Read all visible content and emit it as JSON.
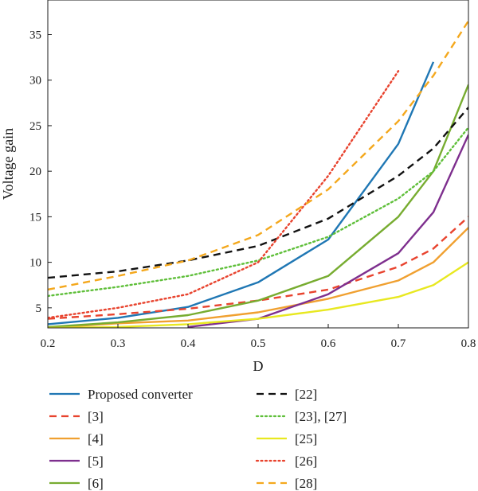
{
  "chart_data": {
    "type": "line",
    "title": "",
    "xlabel": "D",
    "ylabel": "Voltage gain",
    "xlim": [
      0.2,
      0.8
    ],
    "ylim": [
      2.8,
      38.8
    ],
    "x_ticks": [
      "0.2",
      "0.3",
      "0.4",
      "0.5",
      "0.6",
      "0.7",
      "0.8"
    ],
    "y_ticks": [
      "5",
      "10",
      "15",
      "20",
      "25",
      "30",
      "35"
    ],
    "x_tick_values": [
      0.2,
      0.3,
      0.4,
      0.5,
      0.6,
      0.7,
      0.8
    ],
    "y_tick_values": [
      5,
      10,
      15,
      20,
      25,
      30,
      35
    ],
    "grid": false,
    "legend_position": "bottom",
    "x": [
      0.2,
      0.3,
      0.4,
      0.5,
      0.6,
      0.7,
      0.75,
      0.8
    ],
    "series": [
      {
        "name": "Proposed converter",
        "color": "#1f77b4",
        "dash": "solid",
        "values": [
          3.2,
          3.9,
          5.1,
          7.8,
          12.5,
          23.0,
          32.0,
          null
        ]
      },
      {
        "name": "[3]",
        "color": "#e8432e",
        "dash": "dashed",
        "values": [
          3.8,
          4.3,
          4.9,
          5.8,
          7.0,
          9.5,
          11.5,
          15.0
        ]
      },
      {
        "name": "[4]",
        "color": "#f0a030",
        "dash": "solid",
        "values": [
          2.8,
          3.3,
          3.6,
          4.5,
          6.0,
          8.0,
          10.0,
          13.8
        ]
      },
      {
        "name": "[5]",
        "color": "#7e2f8e",
        "dash": "solid",
        "values": [
          null,
          null,
          2.9,
          3.8,
          6.5,
          11.0,
          15.5,
          24.0
        ]
      },
      {
        "name": "[6]",
        "color": "#77ac30",
        "dash": "solid",
        "values": [
          2.9,
          3.4,
          4.2,
          5.8,
          8.5,
          15.0,
          20.0,
          29.5
        ]
      },
      {
        "name": "[22]",
        "color": "#111111",
        "dash": "dashed",
        "values": [
          8.3,
          9.0,
          10.2,
          11.8,
          14.8,
          19.5,
          22.5,
          27.0
        ]
      },
      {
        "name": "[23], [27]",
        "color": "#5fbf3a",
        "dash": "dotted",
        "values": [
          6.3,
          7.3,
          8.5,
          10.2,
          12.8,
          17.0,
          20.0,
          24.8
        ]
      },
      {
        "name": "[25]",
        "color": "#e8e820",
        "dash": "solid",
        "values": [
          2.8,
          2.9,
          3.2,
          3.8,
          4.8,
          6.2,
          7.5,
          10.0
        ]
      },
      {
        "name": "[26]",
        "color": "#e8432e",
        "dash": "dotted",
        "values": [
          3.9,
          5.0,
          6.5,
          10.0,
          19.5,
          31.0,
          null,
          null
        ]
      },
      {
        "name": "[28]",
        "color": "#f4a81d",
        "dash": "dashed",
        "values": [
          7.0,
          8.5,
          10.2,
          13.0,
          18.0,
          25.5,
          30.5,
          36.5
        ]
      }
    ]
  }
}
